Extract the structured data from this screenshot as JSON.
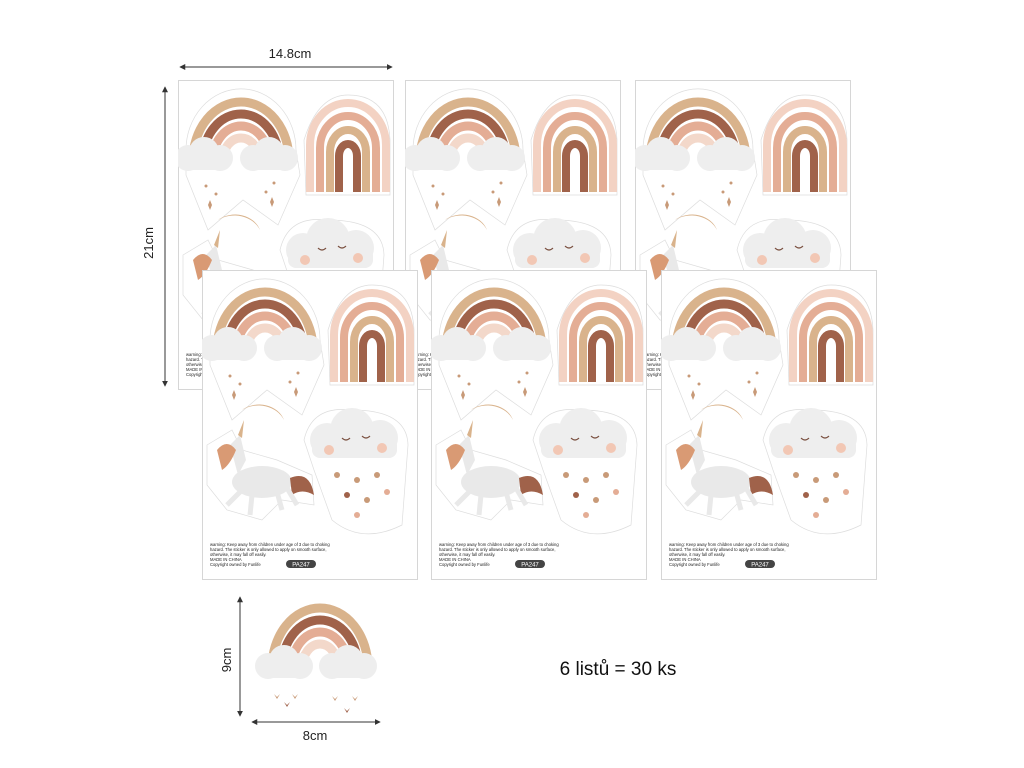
{
  "dimensions": {
    "sheet_width": "14.8cm",
    "sheet_height": "21cm",
    "sticker_height": "9cm",
    "sticker_width": "8cm"
  },
  "summary": "6 listů = 30 ks",
  "sheet": {
    "warning": "warning: Keep away from children under age of 3 due to choking hazard. The sticker is only allowed to apply on smooth surface, otherwise, it may fall off easily.",
    "origin": "MADE IN CHINA",
    "copyright": "Copyright owned by Funlife",
    "code": "PA247"
  }
}
